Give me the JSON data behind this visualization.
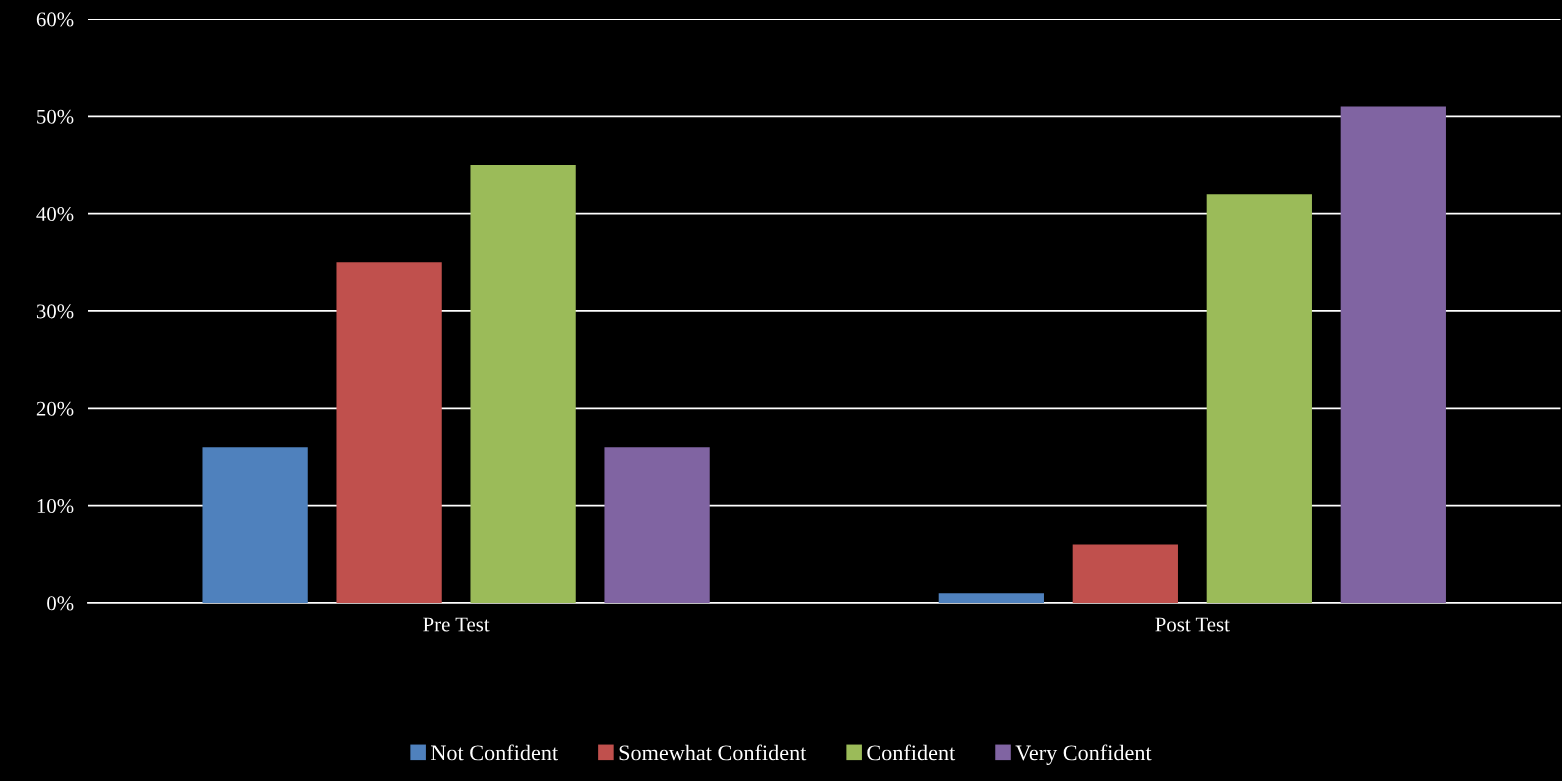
{
  "chart_data": {
    "type": "bar",
    "categories": [
      "Pre Test",
      "Post Test"
    ],
    "series": [
      {
        "name": "Not Confident",
        "color": "#4f81bd",
        "values": [
          16,
          1
        ]
      },
      {
        "name": "Somewhat Confident",
        "color": "#c0504d",
        "values": [
          35,
          6
        ]
      },
      {
        "name": "Confident",
        "color": "#9bbb59",
        "values": [
          45,
          42
        ]
      },
      {
        "name": "Very Confident",
        "color": "#8064a2",
        "values": [
          16,
          51
        ]
      }
    ],
    "ylim": [
      0,
      60
    ],
    "yticks": [
      {
        "value": 0,
        "label": "0%"
      },
      {
        "value": 10,
        "label": "10%"
      },
      {
        "value": 20,
        "label": "20%"
      },
      {
        "value": 30,
        "label": "30%"
      },
      {
        "value": 40,
        "label": "40%"
      },
      {
        "value": 50,
        "label": "50%"
      },
      {
        "value": 60,
        "label": "60%"
      }
    ],
    "grid": "y",
    "legend": "bottom"
  }
}
